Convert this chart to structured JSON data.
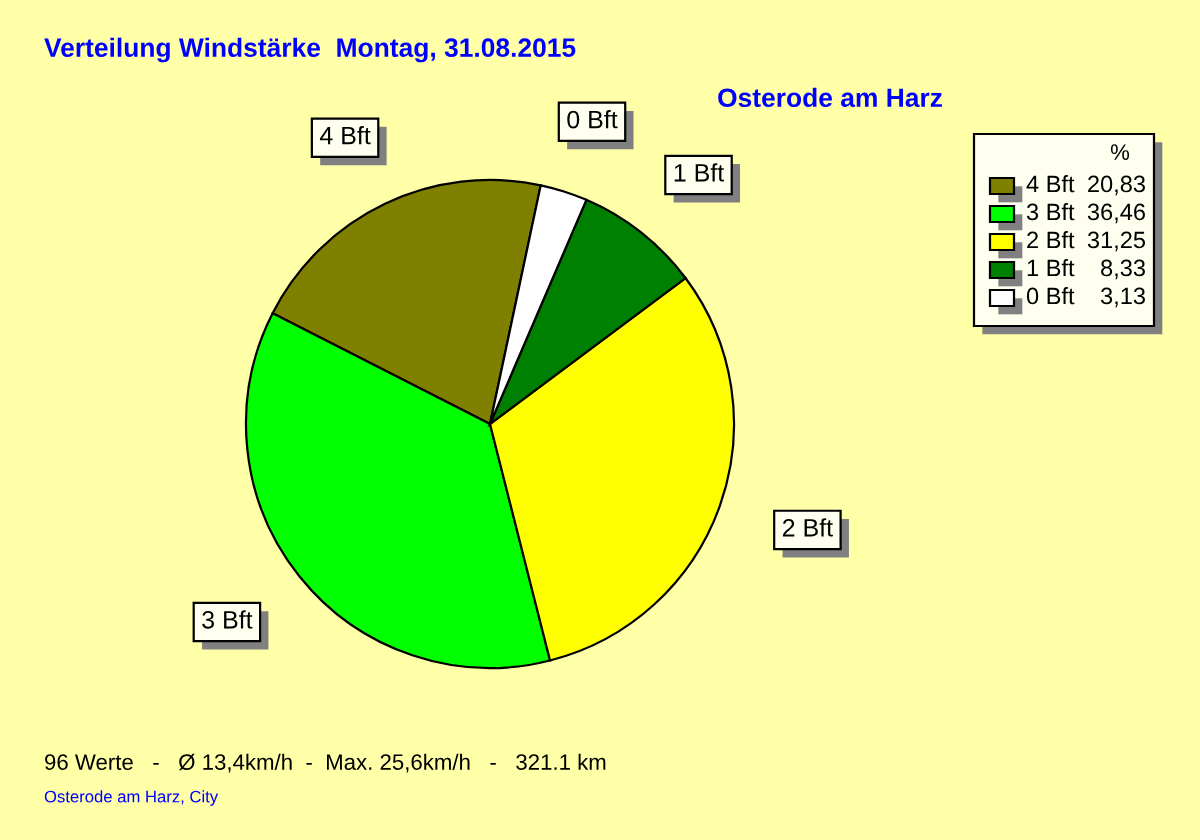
{
  "chart_data": {
    "type": "pie",
    "title": "Verteilung Windstärke  Montag, 31.08.2015",
    "subtitle": "Osterode am Harz",
    "categories": [
      "4 Bft",
      "3 Bft",
      "2 Bft",
      "1 Bft",
      "0 Bft"
    ],
    "values": [
      20.83,
      36.46,
      31.25,
      8.33,
      3.13
    ],
    "colors": [
      "#808000",
      "#00ff00",
      "#ffff00",
      "#008000",
      "#ffffff"
    ],
    "value_labels": [
      "20,83",
      "36,46",
      "31,25",
      "8,33",
      "3,13"
    ],
    "legend": "top right",
    "legend_title": "%",
    "annotations": [
      "96 Werte   -   Ø 13,4km/h  -  Max. 25,6km/h   -   321.1 km",
      "Osterode am Harz, City"
    ]
  }
}
